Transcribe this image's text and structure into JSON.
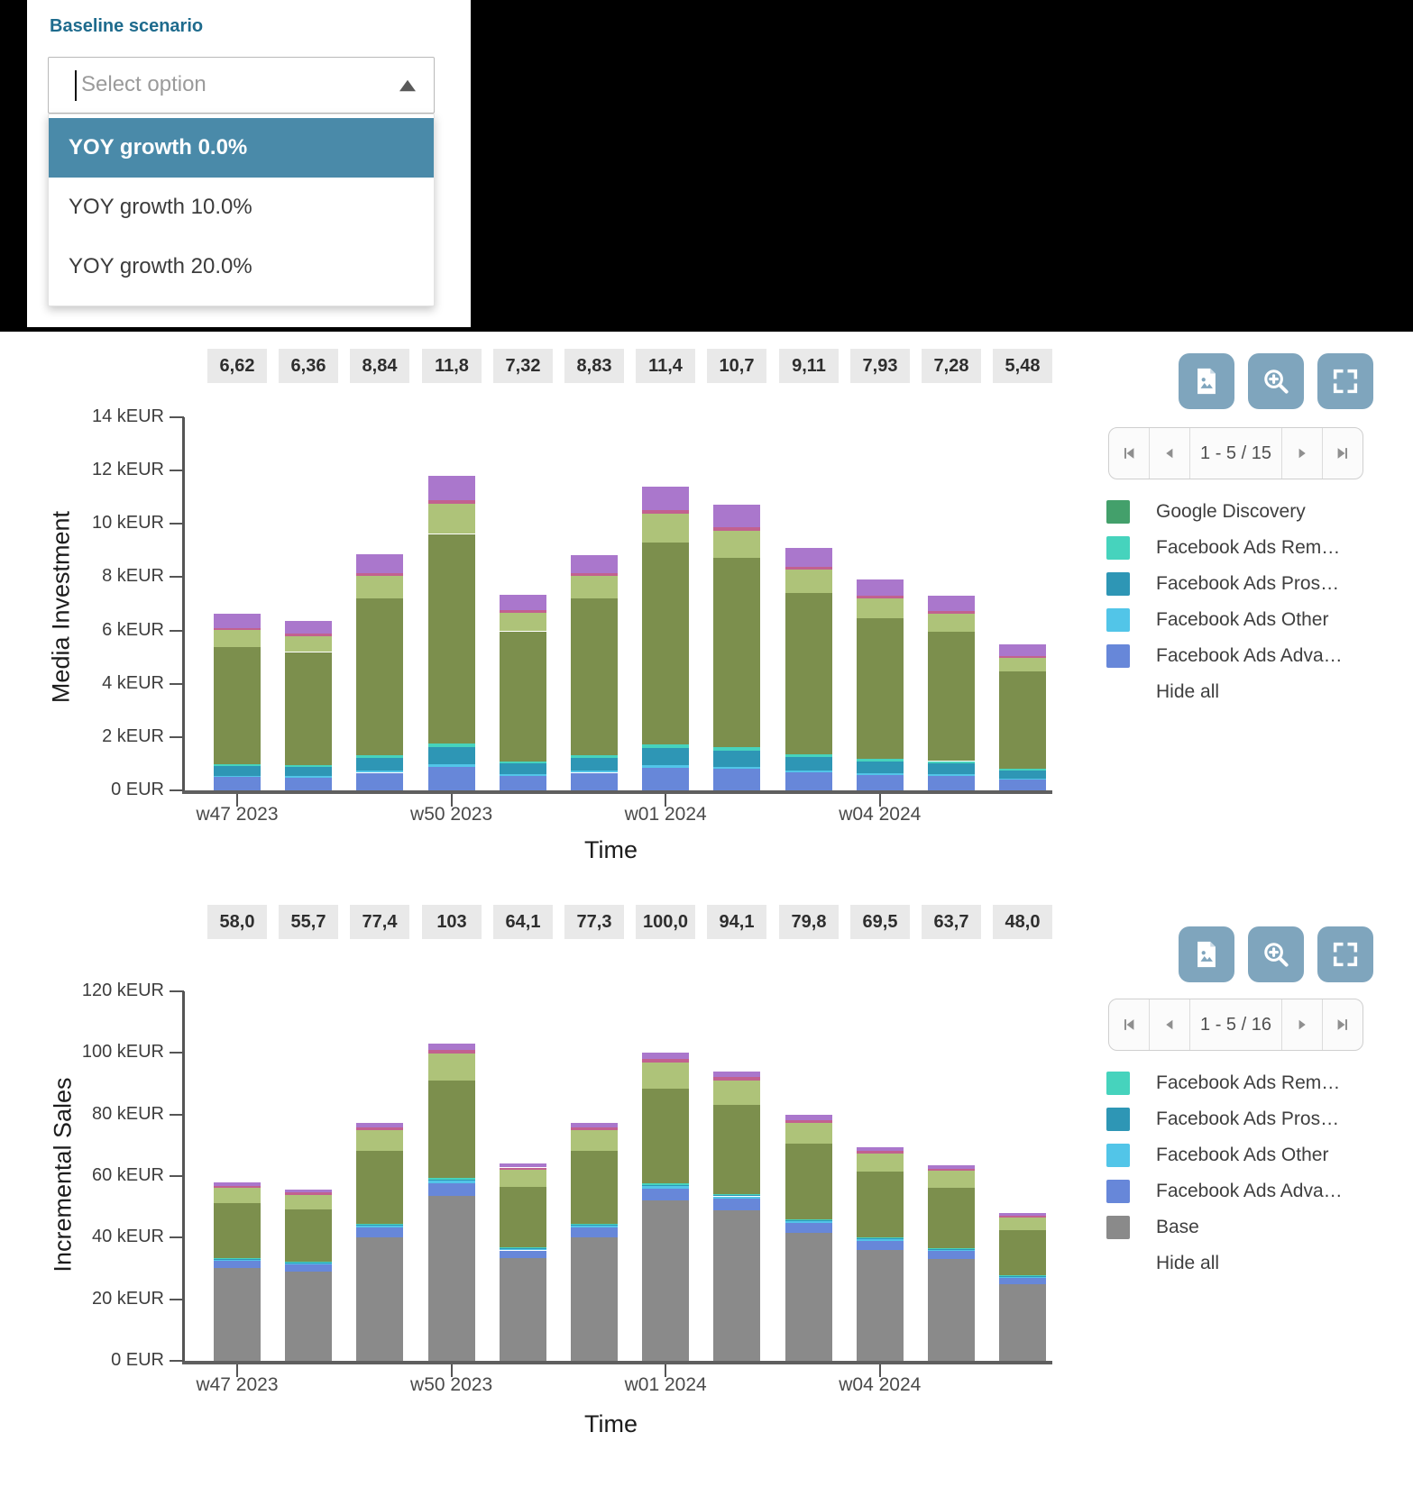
{
  "scenario_panel": {
    "label": "Baseline scenario",
    "select": {
      "placeholder": "Select option",
      "state": "expanded",
      "collapse_icon": "triangle-up"
    },
    "options": [
      {
        "label": "YOY growth 0.0%",
        "highlighted": true
      },
      {
        "label": "YOY growth 10.0%",
        "highlighted": false
      },
      {
        "label": "YOY growth 20.0%",
        "highlighted": false
      }
    ],
    "colors": {
      "label": "#1e6b8d",
      "highlight_bg": "#4a8aa9",
      "highlight_text": "#ffffff",
      "placeholder": "#9b9b9b"
    }
  },
  "charts": [
    {
      "y_axis_title": "Media Investment",
      "x_axis_title": "Time",
      "y_tick_labels": [
        "0 EUR",
        "2 kEUR",
        "4 kEUR",
        "6 kEUR",
        "8 kEUR",
        "10 kEUR",
        "12 kEUR",
        "14 kEUR"
      ],
      "toolbar": {
        "buttons": [
          "export-image",
          "zoom-in",
          "fullscreen"
        ],
        "color": "#7fa5bd"
      },
      "pagination": {
        "range_label": "1 - 5 / 15"
      },
      "legend": {
        "items": [
          {
            "label": "Google Discovery",
            "color": "#43a06b"
          },
          {
            "label": "Facebook Ads Rem…",
            "color": "#46d3bd"
          },
          {
            "label": "Facebook Ads Pros…",
            "color": "#2e96b5"
          },
          {
            "label": "Facebook Ads Other",
            "color": "#52c5e8"
          },
          {
            "label": "Facebook Ads Adva…",
            "color": "#6787d9"
          }
        ],
        "hide_all_label": "Hide all"
      }
    },
    {
      "y_axis_title": "Incremental Sales",
      "x_axis_title": "Time",
      "y_tick_labels": [
        "0 EUR",
        "20 kEUR",
        "40 kEUR",
        "60 kEUR",
        "80 kEUR",
        "100 kEUR",
        "120 kEUR"
      ],
      "toolbar": {
        "buttons": [
          "export-image",
          "zoom-in",
          "fullscreen"
        ],
        "color": "#7fa5bd"
      },
      "pagination": {
        "range_label": "1 - 5 / 16"
      },
      "legend": {
        "items": [
          {
            "label": "Facebook Ads Rem…",
            "color": "#46d3bd"
          },
          {
            "label": "Facebook Ads Pros…",
            "color": "#2e96b5"
          },
          {
            "label": "Facebook Ads Other",
            "color": "#52c5e8"
          },
          {
            "label": "Facebook Ads Adva…",
            "color": "#6787d9"
          },
          {
            "label": "Base",
            "color": "#8a8a8a"
          }
        ],
        "hide_all_label": "Hide all"
      }
    }
  ],
  "chart_data": [
    {
      "type": "bar",
      "stacked": true,
      "ylabel": "Media Investment",
      "xlabel": "Time",
      "unit": "kEUR",
      "ylim": [
        0,
        14
      ],
      "ytick_step": 2,
      "n_bars": 12,
      "x_tick_labels": [
        {
          "index": 0,
          "label": "w47 2023"
        },
        {
          "index": 3,
          "label": "w50 2023"
        },
        {
          "index": 6,
          "label": "w01 2024"
        },
        {
          "index": 9,
          "label": "w04 2024"
        }
      ],
      "totals": [
        6.62,
        6.36,
        8.84,
        11.8,
        7.32,
        8.83,
        11.4,
        10.7,
        9.11,
        7.93,
        7.28,
        5.48
      ],
      "total_labels": [
        "6,62",
        "6,36",
        "8,84",
        "11,8",
        "7,32",
        "8,83",
        "11,4",
        "10,7",
        "9,11",
        "7,93",
        "7,28",
        "5,48"
      ],
      "note": "legend shows 5 of 15 series; olive/light-green/pink/purple segments belong to series not visible on this legend page; segment values estimated from pixels",
      "series": [
        {
          "name": "Facebook Ads Adva…",
          "color": "#6787d9",
          "values": [
            0.5,
            0.48,
            0.66,
            0.89,
            0.55,
            0.66,
            0.86,
            0.8,
            0.68,
            0.59,
            0.55,
            0.41
          ]
        },
        {
          "name": "Facebook Ads Other",
          "color": "#52c5e8",
          "values": [
            0.05,
            0.05,
            0.07,
            0.09,
            0.06,
            0.07,
            0.09,
            0.09,
            0.07,
            0.06,
            0.06,
            0.04
          ]
        },
        {
          "name": "Facebook Ads Pros…",
          "color": "#2e96b5",
          "values": [
            0.36,
            0.35,
            0.49,
            0.65,
            0.4,
            0.49,
            0.63,
            0.59,
            0.5,
            0.44,
            0.4,
            0.3
          ]
        },
        {
          "name": "Facebook Ads Rem…",
          "color": "#46d3bd",
          "values": [
            0.08,
            0.08,
            0.11,
            0.14,
            0.09,
            0.11,
            0.14,
            0.13,
            0.11,
            0.1,
            0.09,
            0.07
          ]
        },
        {
          "name": "Google Discovery",
          "color": "#43a06b",
          "values": [
            0,
            0,
            0,
            0,
            0,
            0,
            0,
            0,
            0,
            0,
            0,
            0
          ]
        },
        {
          "name": "",
          "color": "#7c8f4d",
          "values": [
            4.4,
            4.23,
            5.88,
            7.85,
            4.87,
            5.87,
            7.58,
            7.12,
            6.06,
            5.27,
            4.84,
            3.64
          ]
        },
        {
          "name": "",
          "color": "#aec379",
          "values": [
            0.63,
            0.6,
            0.84,
            1.12,
            0.7,
            0.84,
            1.08,
            1.02,
            0.87,
            0.75,
            0.69,
            0.52
          ]
        },
        {
          "name": "",
          "color": "#c2618f",
          "values": [
            0.08,
            0.08,
            0.11,
            0.14,
            0.09,
            0.11,
            0.14,
            0.13,
            0.11,
            0.1,
            0.09,
            0.07
          ]
        },
        {
          "name": "",
          "color": "#aa77cc",
          "values": [
            0.52,
            0.5,
            0.69,
            0.92,
            0.57,
            0.69,
            0.89,
            0.83,
            0.71,
            0.62,
            0.57,
            0.43
          ]
        }
      ]
    },
    {
      "type": "bar",
      "stacked": true,
      "ylabel": "Incremental Sales",
      "xlabel": "Time",
      "unit": "kEUR",
      "ylim": [
        0,
        120
      ],
      "ytick_step": 20,
      "n_bars": 12,
      "x_tick_labels": [
        {
          "index": 0,
          "label": "w47 2023"
        },
        {
          "index": 3,
          "label": "w50 2023"
        },
        {
          "index": 6,
          "label": "w01 2024"
        },
        {
          "index": 9,
          "label": "w04 2024"
        }
      ],
      "totals": [
        58.0,
        55.7,
        77.4,
        103,
        64.1,
        77.3,
        100.0,
        94.1,
        79.8,
        69.5,
        63.7,
        48.0
      ],
      "total_labels": [
        "58,0",
        "55,7",
        "77,4",
        "103",
        "64,1",
        "77,3",
        "100,0",
        "94,1",
        "79,8",
        "69,5",
        "63,7",
        "48,0"
      ],
      "note": "legend shows 5 of 16 series; olive/light-green/pink/purple segments belong to series not visible on this legend page; segment values estimated from pixels",
      "series": [
        {
          "name": "Base",
          "color": "#8a8a8a",
          "values": [
            30.2,
            29.0,
            40.2,
            53.6,
            33.3,
            40.2,
            52.0,
            48.9,
            41.5,
            36.1,
            33.1,
            25.0
          ]
        },
        {
          "name": "Facebook Ads Adva…",
          "color": "#6787d9",
          "values": [
            2.32,
            2.23,
            3.1,
            4.12,
            2.56,
            3.09,
            4.0,
            3.76,
            3.19,
            2.78,
            2.55,
            1.92
          ]
        },
        {
          "name": "Facebook Ads Other",
          "color": "#52c5e8",
          "values": [
            0.46,
            0.45,
            0.62,
            0.82,
            0.51,
            0.62,
            0.8,
            0.75,
            0.64,
            0.56,
            0.51,
            0.38
          ]
        },
        {
          "name": "Facebook Ads Pros…",
          "color": "#2e96b5",
          "values": [
            0.23,
            0.22,
            0.31,
            0.41,
            0.26,
            0.31,
            0.4,
            0.38,
            0.32,
            0.28,
            0.25,
            0.19
          ]
        },
        {
          "name": "Facebook Ads Rem…",
          "color": "#46d3bd",
          "values": [
            0.23,
            0.22,
            0.31,
            0.41,
            0.26,
            0.31,
            0.4,
            0.38,
            0.32,
            0.28,
            0.25,
            0.19
          ]
        },
        {
          "name": "",
          "color": "#7c8f4d",
          "values": [
            17.81,
            17.1,
            23.76,
            31.62,
            19.68,
            23.73,
            30.7,
            28.89,
            24.5,
            21.34,
            19.56,
            14.74
          ]
        },
        {
          "name": "",
          "color": "#aec379",
          "values": [
            4.93,
            4.73,
            6.58,
            8.76,
            5.45,
            6.57,
            8.5,
            8.0,
            6.78,
            5.91,
            5.41,
            4.08
          ]
        },
        {
          "name": "",
          "color": "#c2618f",
          "values": [
            0.7,
            0.67,
            0.93,
            1.24,
            0.77,
            0.93,
            1.2,
            1.13,
            0.96,
            0.83,
            0.76,
            0.58
          ]
        },
        {
          "name": "",
          "color": "#aa77cc",
          "values": [
            1.16,
            1.11,
            1.55,
            2.06,
            1.28,
            1.55,
            2.0,
            1.88,
            1.6,
            1.39,
            1.27,
            0.96
          ]
        }
      ]
    }
  ]
}
